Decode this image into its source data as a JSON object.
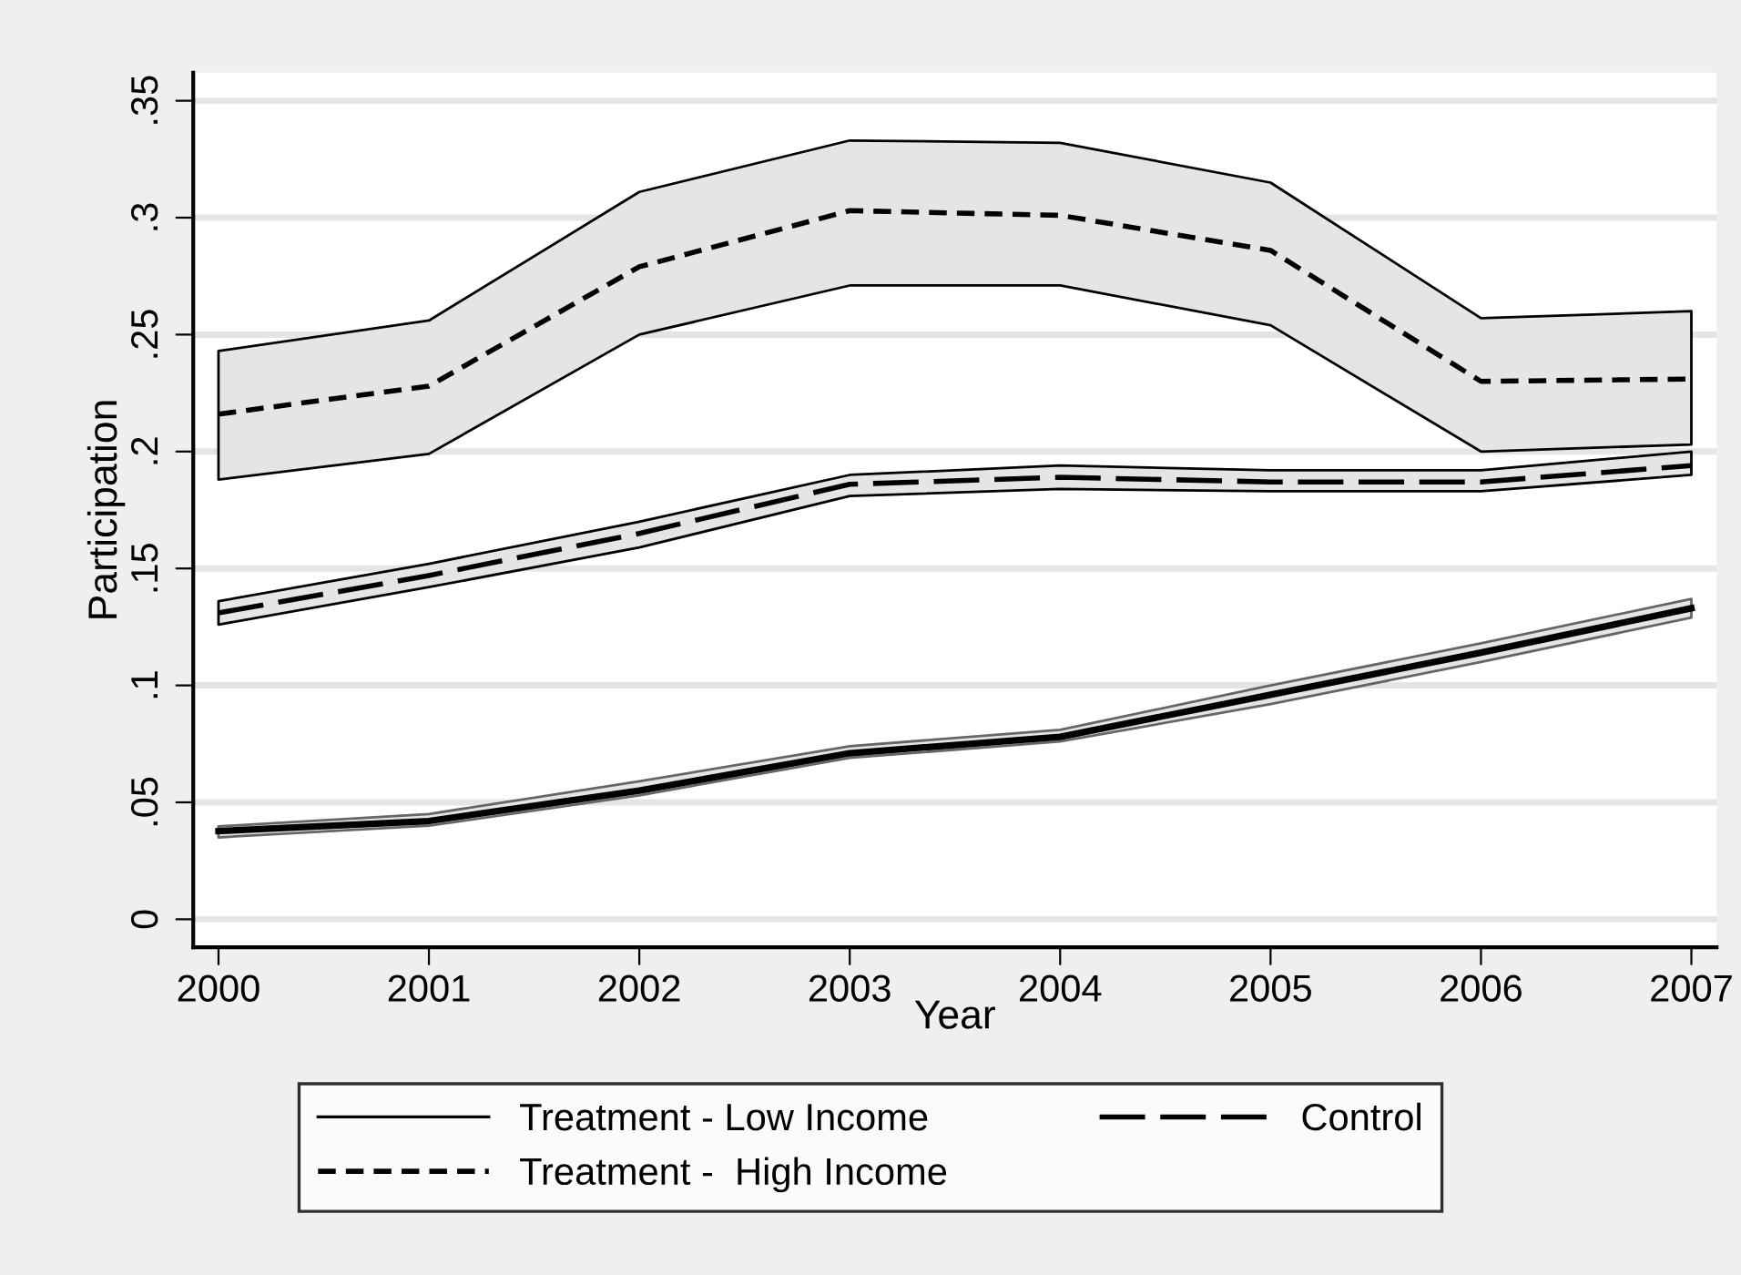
{
  "chart_data": {
    "type": "line",
    "xlabel": "Year",
    "ylabel": "Participation",
    "x": [
      2000,
      2001,
      2002,
      2003,
      2004,
      2005,
      2006,
      2007
    ],
    "series": [
      {
        "name": "Treatment - Low Income",
        "color": "#000000",
        "line_style": "solid",
        "values": [
          0.0377,
          0.042,
          0.055,
          0.071,
          0.078,
          0.096,
          0.114,
          0.133
        ],
        "lower": [
          0.035,
          0.04,
          0.053,
          0.069,
          0.076,
          0.092,
          0.11,
          0.129
        ],
        "upper": [
          0.0397,
          0.045,
          0.059,
          0.074,
          0.081,
          0.1,
          0.118,
          0.137
        ]
      },
      {
        "name": "Control",
        "color": "#000000",
        "line_style": "dashed",
        "values": [
          0.131,
          0.147,
          0.165,
          0.186,
          0.189,
          0.187,
          0.187,
          0.194
        ],
        "lower": [
          0.126,
          0.142,
          0.159,
          0.181,
          0.184,
          0.183,
          0.183,
          0.19
        ],
        "upper": [
          0.136,
          0.152,
          0.17,
          0.19,
          0.194,
          0.192,
          0.192,
          0.2
        ]
      },
      {
        "name": "Treatment -  High Income",
        "color": "#000000",
        "line_style": "dotted",
        "values": [
          0.216,
          0.228,
          0.279,
          0.303,
          0.301,
          0.286,
          0.23,
          0.231
        ],
        "lower": [
          0.188,
          0.199,
          0.25,
          0.271,
          0.271,
          0.254,
          0.2,
          0.203
        ],
        "upper": [
          0.243,
          0.256,
          0.311,
          0.333,
          0.332,
          0.315,
          0.257,
          0.26
        ]
      }
    ],
    "xlim": [
      1999.88,
      2007.12
    ],
    "ylim": [
      -0.012,
      0.362
    ],
    "xticks": [
      2000,
      2001,
      2002,
      2003,
      2004,
      2005,
      2006,
      2007
    ],
    "yticks": [
      0,
      {
        "value": 0.05,
        "label": ".05"
      },
      {
        "value": 0.1,
        "label": ".1"
      },
      {
        "value": 0.15,
        "label": ".15"
      },
      {
        "value": 0.2,
        "label": ".2"
      },
      {
        "value": 0.25,
        "label": ".25"
      },
      {
        "value": 0.3,
        "label": ".3"
      },
      {
        "value": 0.35,
        "label": ".35"
      }
    ],
    "grid": "y",
    "legend": "bottom",
    "marker": "none"
  }
}
